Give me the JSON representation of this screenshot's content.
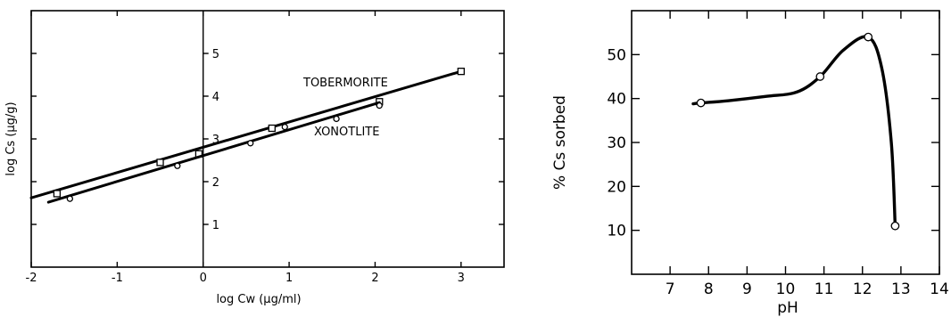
{
  "chart_data": [
    {
      "type": "line",
      "title": "",
      "xlabel": "log Cw (µg/ml)",
      "ylabel": "log Cs (µg/g)",
      "xlim": [
        -2,
        3.5
      ],
      "ylim": [
        0,
        6
      ],
      "x_ticks": [
        -2,
        -1,
        0,
        1,
        2,
        3
      ],
      "y_ticks": [
        1,
        2,
        3,
        4,
        5
      ],
      "grid": false,
      "zero_axis_line": true,
      "series": [
        {
          "name": "TOBERMORITE",
          "marker": "square",
          "points": [
            [
              -1.7,
              1.72
            ],
            [
              -0.5,
              2.45
            ],
            [
              -0.05,
              2.65
            ],
            [
              0.8,
              3.25
            ],
            [
              2.05,
              3.87
            ],
            [
              3.0,
              4.58
            ]
          ],
          "fit": [
            [
              -2.0,
              1.62
            ],
            [
              3.0,
              4.58
            ]
          ]
        },
        {
          "name": "XONOTLITE",
          "marker": "circle",
          "points": [
            [
              -1.55,
              1.6
            ],
            [
              -0.3,
              2.37
            ],
            [
              0.55,
              2.9
            ],
            [
              0.95,
              3.28
            ],
            [
              1.55,
              3.47
            ],
            [
              2.05,
              3.78
            ]
          ],
          "fit": [
            [
              -1.8,
              1.52
            ],
            [
              2.05,
              3.85
            ]
          ]
        }
      ]
    },
    {
      "type": "line",
      "title": "",
      "xlabel": "pH",
      "ylabel": "% Cs sorbed",
      "xlim": [
        6,
        14
      ],
      "ylim": [
        0,
        60
      ],
      "x_ticks": [
        7,
        8,
        9,
        10,
        11,
        12,
        13,
        14
      ],
      "y_ticks": [
        10,
        20,
        30,
        40,
        50
      ],
      "grid": false,
      "series": [
        {
          "name": "",
          "marker": "circle",
          "points": [
            [
              7.8,
              39
            ],
            [
              10.9,
              45
            ],
            [
              12.15,
              54
            ],
            [
              12.85,
              11
            ]
          ],
          "curve": [
            [
              7.6,
              38.8
            ],
            [
              7.8,
              39
            ],
            [
              8.5,
              39.5
            ],
            [
              9.5,
              40.5
            ],
            [
              10.3,
              41.5
            ],
            [
              10.9,
              45
            ],
            [
              11.5,
              51
            ],
            [
              12.15,
              54
            ],
            [
              12.5,
              47
            ],
            [
              12.75,
              30
            ],
            [
              12.85,
              11
            ]
          ]
        }
      ]
    }
  ]
}
